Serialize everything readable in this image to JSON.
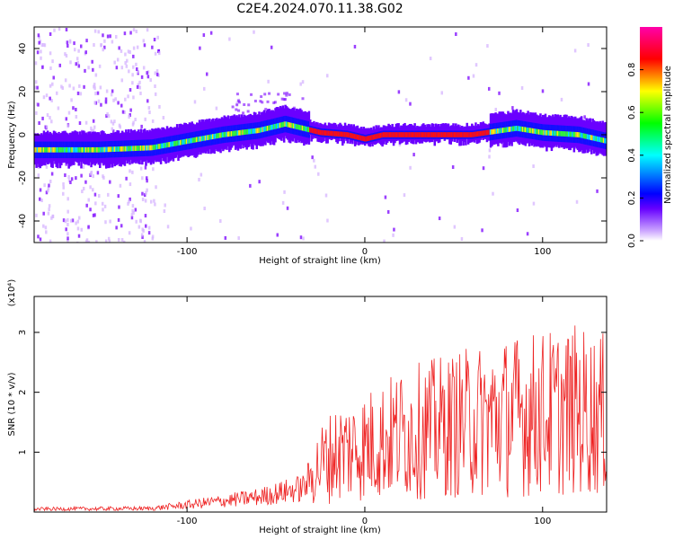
{
  "title": "C2E4.2024.070.11.38.G02",
  "chart_data": [
    {
      "type": "heatmap",
      "xlabel": "Height of straight line (km)",
      "ylabel": "Frequency (Hz)",
      "xlim": [
        -186,
        136
      ],
      "ylim": [
        -50,
        50
      ],
      "x_ticks": [
        -100,
        0,
        100
      ],
      "y_ticks": [
        -40,
        -20,
        0,
        20,
        40
      ],
      "colorbar": {
        "label": "Normalized spectral amplitude",
        "range": [
          0,
          1
        ],
        "ticks": [
          "0.0",
          "0.2",
          "0.4",
          "0.6",
          "0.8"
        ],
        "colormap": [
          "#ff00ff",
          "#ff0000",
          "#ffff00",
          "#00ff00",
          "#00ffff",
          "#0000ff",
          "#8800ff",
          "#ffffff"
        ]
      },
      "ridge": {
        "description_points_x": [
          -186,
          -150,
          -120,
          -100,
          -80,
          -60,
          -45,
          -35,
          -25,
          -10,
          0,
          10,
          30,
          60,
          85,
          100,
          120,
          136
        ],
        "description_points_y": [
          -7,
          -7,
          -6,
          -3,
          0,
          2,
          5,
          3,
          1,
          0,
          -2,
          0,
          0,
          0,
          3,
          1,
          0,
          -3
        ]
      }
    },
    {
      "type": "line",
      "xlabel": "Height of straight line (km)",
      "ylabel": "SNR (10 * v/v)",
      "yscale_label": "(x10⁴)",
      "xlim": [
        -186,
        136
      ],
      "ylim": [
        0,
        3.6
      ],
      "x_ticks": [
        -100,
        0,
        100
      ],
      "y_ticks": [
        1,
        2,
        3
      ],
      "color": "#ee2222",
      "trend_x": [
        -186,
        -120,
        -100,
        -60,
        -35,
        -25,
        -15,
        0,
        20,
        40,
        60,
        80,
        100,
        120,
        136
      ],
      "trend_y": [
        0.05,
        0.06,
        0.12,
        0.25,
        0.4,
        0.8,
        1.0,
        1.1,
        1.3,
        1.4,
        1.5,
        1.6,
        1.65,
        1.7,
        1.6
      ]
    }
  ]
}
